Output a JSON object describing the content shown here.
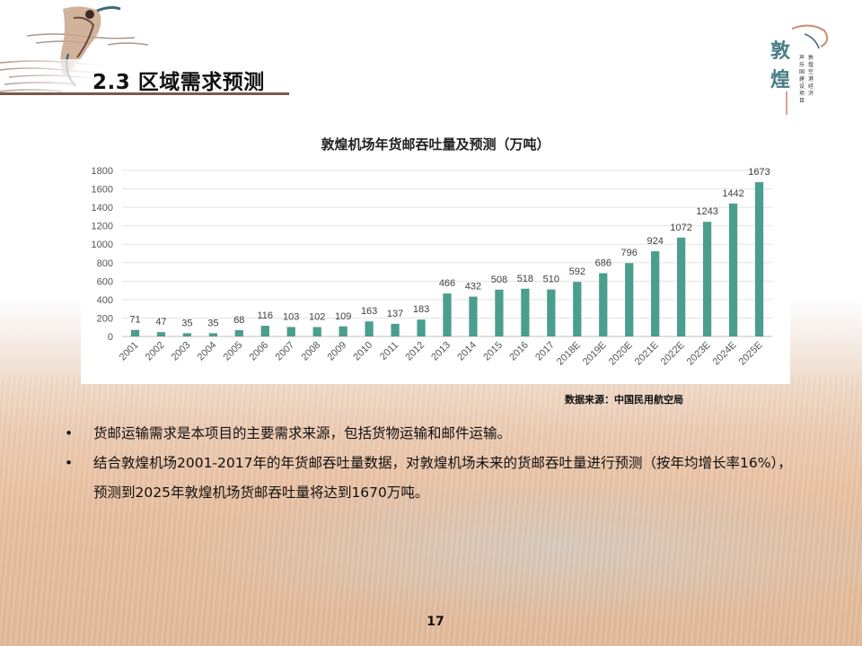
{
  "slide": {
    "section_title": "2.3 区域需求预测",
    "source": "数据来源：中国民用航空局",
    "bullets": [
      "货邮运输需求是本项目的主要需求来源，包括货物运输和邮件运输。",
      "结合敦煌机场2001-2017年的年货邮吞吐量数据，对敦煌机场未来的货邮吞吐量进行预测（按年均增长率16%），预测到2025年敦煌机场货邮吞吐量将达到1670万吨。"
    ],
    "bullet_symbol": "•",
    "page_number": "17",
    "logo_text": "敦煌",
    "logo_subtitle": "声乐国建设项目 敦煌空港经济"
  },
  "chart_data": {
    "type": "bar",
    "title": "敦煌机场年货邮吞吐量及预测（万吨）",
    "xlabel": "",
    "ylabel": "",
    "categories": [
      "2001",
      "2002",
      "2003",
      "2004",
      "2005",
      "2006",
      "2007",
      "2008",
      "2009",
      "2010",
      "2011",
      "2012",
      "2013",
      "2014",
      "2015",
      "2016",
      "2017",
      "2018E",
      "2019E",
      "2020E",
      "2021E",
      "2022E",
      "2023E",
      "2024E",
      "2025E"
    ],
    "values": [
      71,
      47,
      35,
      35,
      68,
      116,
      103,
      102,
      109,
      163,
      137,
      183,
      466,
      432,
      508,
      518,
      510,
      592,
      686,
      796,
      924,
      1072,
      1243,
      1442,
      1673
    ],
    "ylim": [
      0,
      1800
    ],
    "yticks": [
      0,
      200,
      400,
      600,
      800,
      1000,
      1200,
      1400,
      1600,
      1800
    ],
    "grid": true,
    "bar_color": "#4a9e8e",
    "data_labels": true
  },
  "colors": {
    "accent": "#4a9e8e",
    "title_rule": "#7a5a4a"
  }
}
